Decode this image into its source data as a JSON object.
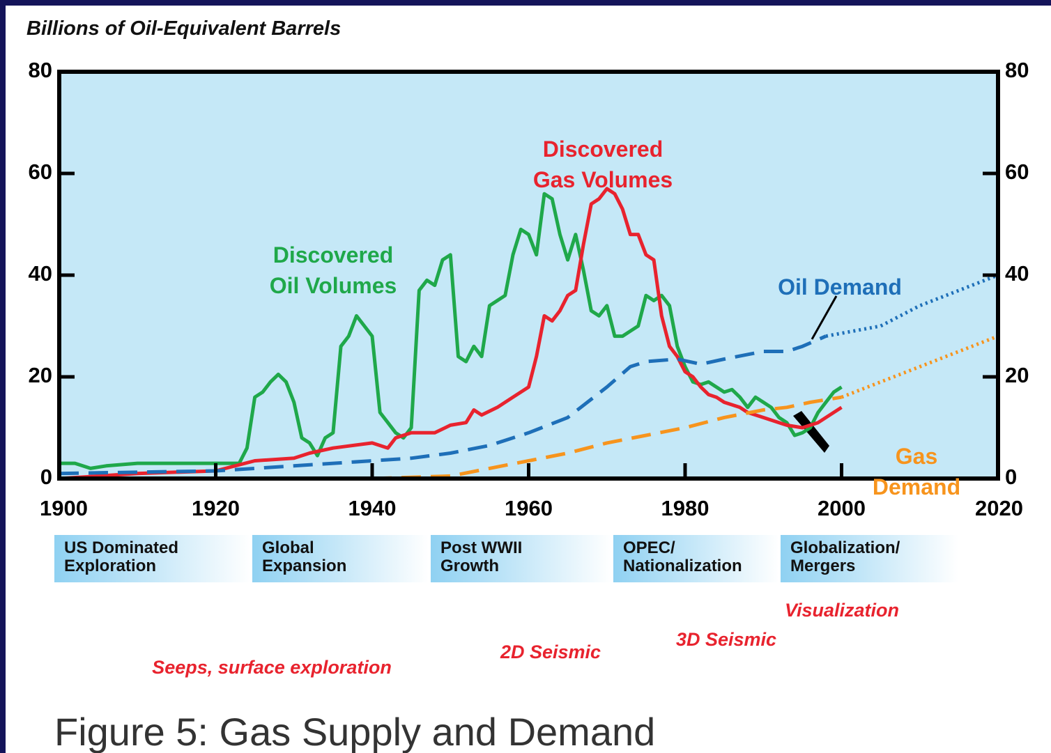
{
  "chart_data": {
    "type": "line",
    "ylabel": "Billions of Oil-Equivalent Barrels",
    "caption": "Figure 5: Gas Supply and Demand",
    "xlim": [
      1900,
      2020
    ],
    "xticks": [
      1900,
      1920,
      1940,
      1960,
      1980,
      2000,
      2020
    ],
    "ylim": [
      0,
      80
    ],
    "yticks": [
      0,
      20,
      40,
      60,
      80
    ],
    "y2lim": [
      0,
      80
    ],
    "y2ticks": [
      0,
      20,
      40,
      60,
      80
    ],
    "series": [
      {
        "name": "Discovered\nOil Volumes",
        "color": "#1fa84a",
        "style": "solid",
        "x": [
          1900,
          1902,
          1904,
          1906,
          1910,
          1915,
          1920,
          1923,
          1924,
          1925,
          1926,
          1927,
          1928,
          1929,
          1930,
          1931,
          1932,
          1933,
          1934,
          1935,
          1936,
          1937,
          1938,
          1939,
          1940,
          1941,
          1942,
          1943,
          1944,
          1945,
          1946,
          1947,
          1948,
          1949,
          1950,
          1951,
          1952,
          1953,
          1954,
          1955,
          1956,
          1957,
          1958,
          1959,
          1960,
          1961,
          1962,
          1963,
          1964,
          1965,
          1966,
          1967,
          1968,
          1969,
          1970,
          1971,
          1972,
          1973,
          1974,
          1975,
          1976,
          1977,
          1978,
          1979,
          1980,
          1981,
          1982,
          1983,
          1984,
          1985,
          1986,
          1987,
          1988,
          1989,
          1990,
          1991,
          1992,
          1993,
          1994,
          1995,
          1996,
          1997,
          1998,
          1999,
          2000
        ],
        "values": [
          3,
          3,
          2,
          2.5,
          3,
          3,
          3,
          3,
          6,
          16,
          17,
          19,
          20.5,
          19,
          15,
          8,
          7,
          4.5,
          8,
          9,
          26,
          28,
          32,
          30,
          28,
          13,
          11,
          9,
          8,
          10,
          37,
          39,
          38,
          43,
          44,
          24,
          23,
          26,
          24,
          34,
          35,
          36,
          44,
          49,
          48,
          44,
          56,
          55,
          48,
          43,
          48,
          41,
          33,
          32,
          34,
          28,
          28,
          29,
          30,
          36,
          35,
          36,
          34,
          26,
          22,
          19,
          18.5,
          19,
          18,
          17,
          17.5,
          16,
          14,
          16,
          15,
          14,
          12,
          11,
          8.5,
          9,
          10,
          13,
          15,
          17,
          18
        ]
      },
      {
        "name": "Discovered\nGas Volumes",
        "color": "#e8232e",
        "style": "solid",
        "x": [
          1900,
          1910,
          1920,
          1925,
          1930,
          1932,
          1935,
          1940,
          1942,
          1943,
          1945,
          1948,
          1950,
          1952,
          1953,
          1954,
          1956,
          1958,
          1960,
          1961,
          1962,
          1963,
          1964,
          1965,
          1966,
          1967,
          1968,
          1969,
          1970,
          1971,
          1972,
          1973,
          1974,
          1975,
          1976,
          1977,
          1978,
          1979,
          1980,
          1981,
          1982,
          1983,
          1984,
          1985,
          1987,
          1988,
          1990,
          1992,
          1993,
          1995,
          1997,
          2000
        ],
        "values": [
          0,
          1,
          1.5,
          3.5,
          4,
          5,
          6,
          7,
          6,
          8,
          9,
          9,
          10.5,
          11,
          13.5,
          12.5,
          14,
          16,
          18,
          24,
          32,
          31,
          33,
          36,
          37,
          46,
          54,
          55,
          57,
          56,
          53,
          48,
          48,
          44,
          43,
          32,
          26,
          24,
          21,
          20,
          18,
          16.5,
          16,
          15,
          14,
          13,
          12,
          11,
          10.5,
          10,
          11,
          14
        ]
      },
      {
        "name": "Oil Demand",
        "color": "#1e6fb8",
        "style": "dashed",
        "forecast_from": 1998,
        "x": [
          1900,
          1920,
          1930,
          1940,
          1945,
          1950,
          1955,
          1960,
          1965,
          1970,
          1973,
          1975,
          1979,
          1982,
          1985,
          1990,
          1993,
          1995,
          1998,
          2005,
          2010,
          2015,
          2020
        ],
        "values": [
          1,
          1.5,
          2.5,
          3.5,
          4,
          5,
          6.5,
          9,
          12,
          18,
          22,
          23,
          23.5,
          22.5,
          23.5,
          25,
          25,
          26,
          28,
          30,
          34,
          37,
          40
        ]
      },
      {
        "name": "Gas Demand",
        "color": "#f7941d",
        "style": "dashed",
        "forecast_from": 2000,
        "x": [
          1940,
          1950,
          1955,
          1960,
          1965,
          1970,
          1975,
          1980,
          1985,
          1990,
          1993,
          1996,
          2000,
          2005,
          2010,
          2015,
          2020
        ],
        "values": [
          0,
          0.5,
          2,
          3.5,
          5,
          7,
          8.5,
          10,
          12,
          13.5,
          14,
          15,
          16,
          19,
          22,
          25,
          28
        ]
      }
    ],
    "eras": [
      "US Dominated\nExploration",
      "Global\nExpansion",
      "Post WWII\nGrowth",
      "OPEC/\nNationalization",
      "Globalization/\nMergers"
    ],
    "technologies": [
      "Seeps, surface exploration",
      "2D Seismic",
      "3D Seismic",
      "Visualization"
    ]
  }
}
